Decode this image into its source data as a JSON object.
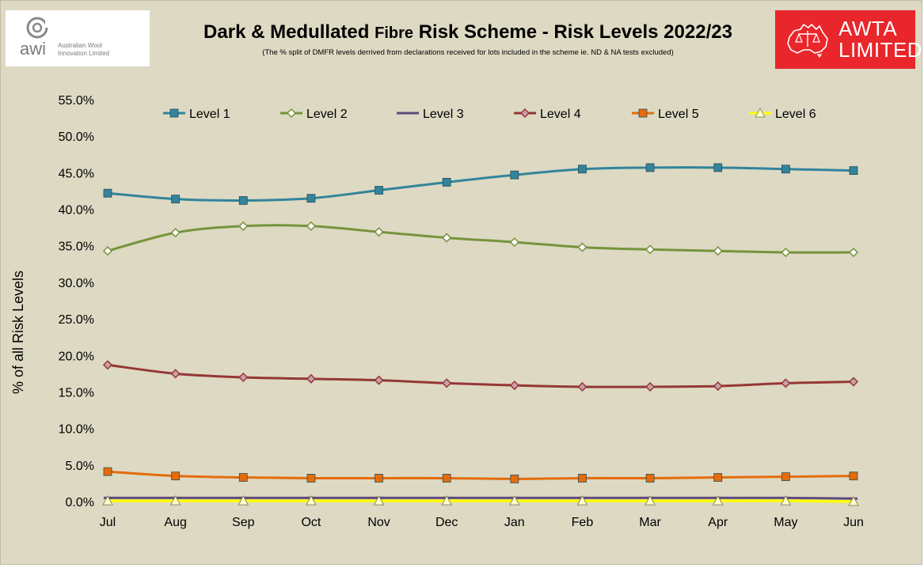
{
  "header": {
    "title_part1": "Dark & Medullated",
    "title_part2": "Fibre",
    "title_part3": "Risk Scheme  - Risk Levels 2022/23",
    "subtitle": "(The % split of DMFR levels derrived from declarations received for lots included in the scheme ie. ND & NA tests excluded)"
  },
  "logos": {
    "awi": {
      "short": "awi",
      "name": "Australian Wool\nInnovation Limited"
    },
    "awta": {
      "name": "AWTA\nLIMITED"
    }
  },
  "colors": {
    "background": "#ddd9c3",
    "awta_red": "#e8262b"
  },
  "chart_data": {
    "type": "line",
    "xlabel": "",
    "ylabel": "% of all Risk Levels",
    "ylim": [
      0,
      55
    ],
    "yticks": [
      "0.0%",
      "5.0%",
      "10.0%",
      "15.0%",
      "20.0%",
      "25.0%",
      "30.0%",
      "35.0%",
      "40.0%",
      "45.0%",
      "50.0%",
      "55.0%"
    ],
    "grid": false,
    "legend_position": "top",
    "categories": [
      "Jul",
      "Aug",
      "Sep",
      "Oct",
      "Nov",
      "Dec",
      "Jan",
      "Feb",
      "Mar",
      "Apr",
      "May",
      "Jun"
    ],
    "series": [
      {
        "name": "Level 1",
        "color": "#31849b",
        "marker": "square",
        "values": [
          42.2,
          41.4,
          41.2,
          41.5,
          42.6,
          43.7,
          44.7,
          45.5,
          45.7,
          45.7,
          45.5,
          45.3
        ]
      },
      {
        "name": "Level 2",
        "color": "#77933c",
        "marker": "diamond",
        "values": [
          34.3,
          36.8,
          37.7,
          37.7,
          36.9,
          36.1,
          35.5,
          34.8,
          34.5,
          34.3,
          34.1,
          34.1
        ]
      },
      {
        "name": "Level 3",
        "color": "#604a7b",
        "marker": "dash",
        "values": [
          0.5,
          0.5,
          0.5,
          0.5,
          0.5,
          0.5,
          0.5,
          0.5,
          0.5,
          0.5,
          0.5,
          0.4
        ]
      },
      {
        "name": "Level 4",
        "color": "#953735",
        "marker": "diamond",
        "values": [
          18.7,
          17.5,
          17.0,
          16.8,
          16.6,
          16.2,
          15.9,
          15.7,
          15.7,
          15.8,
          16.2,
          16.4
        ]
      },
      {
        "name": "Level 5",
        "color": "#e46c0a",
        "marker": "square",
        "values": [
          4.1,
          3.5,
          3.3,
          3.2,
          3.2,
          3.2,
          3.1,
          3.2,
          3.2,
          3.3,
          3.4,
          3.5
        ]
      },
      {
        "name": "Level 6",
        "color": "#ffff00",
        "marker": "triangle",
        "values": [
          0.1,
          0.1,
          0.1,
          0.1,
          0.1,
          0.1,
          0.1,
          0.1,
          0.1,
          0.1,
          0.1,
          0.0
        ]
      }
    ]
  }
}
